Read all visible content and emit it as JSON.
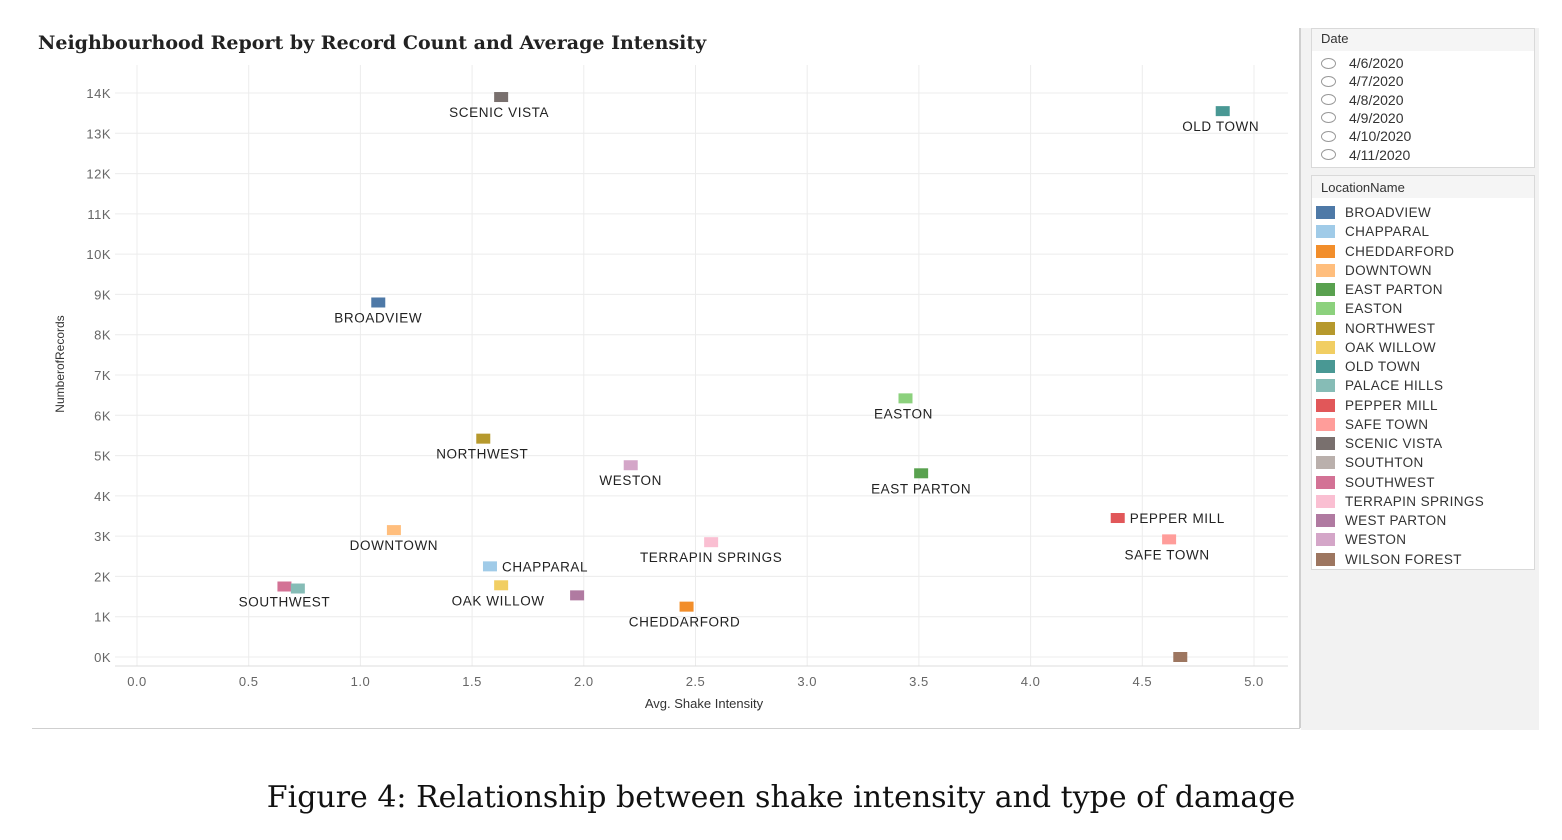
{
  "chart_data": {
    "type": "scatter",
    "title": "Neighbourhood Report by Record Count and Average Intensity",
    "xlabel": "Avg. Shake Intensity",
    "ylabel": "NumberofRecords",
    "xlim": [
      0.0,
      5.0
    ],
    "ylim": [
      0,
      14000
    ],
    "x_ticks": [
      "0.0",
      "0.5",
      "1.0",
      "1.5",
      "2.0",
      "2.5",
      "3.0",
      "3.5",
      "4.0",
      "4.5",
      "5.0"
    ],
    "y_ticks": [
      "0K",
      "1K",
      "2K",
      "3K",
      "4K",
      "5K",
      "6K",
      "7K",
      "8K",
      "9K",
      "10K",
      "11K",
      "12K",
      "13K",
      "14K"
    ],
    "grid": true,
    "legend_placement": "right",
    "points": [
      {
        "name": "SCENIC VISTA",
        "x": 1.63,
        "y": 13900,
        "color": "#79706e",
        "label": "SCENIC VISTA"
      },
      {
        "name": "OLD TOWN",
        "x": 4.86,
        "y": 13550,
        "color": "#499894",
        "label": "OLD TOWN"
      },
      {
        "name": "BROADVIEW",
        "x": 1.08,
        "y": 8800,
        "color": "#4e79a7",
        "label": "BROADVIEW"
      },
      {
        "name": "EASTON",
        "x": 3.44,
        "y": 6420,
        "color": "#8cd17d",
        "label": "EASTON"
      },
      {
        "name": "NORTHWEST",
        "x": 1.55,
        "y": 5420,
        "color": "#b6992d",
        "label": "NORTHWEST"
      },
      {
        "name": "WESTON",
        "x": 2.21,
        "y": 4760,
        "color": "#d4a6c8",
        "label": "WESTON"
      },
      {
        "name": "EAST PARTON",
        "x": 3.51,
        "y": 4560,
        "color": "#59a14f",
        "label": "EAST PARTON"
      },
      {
        "name": "PEPPER MILL",
        "x": 4.39,
        "y": 3450,
        "color": "#e15759",
        "label": "PEPPER MILL"
      },
      {
        "name": "DOWNTOWN",
        "x": 1.15,
        "y": 3150,
        "color": "#ffbe7d",
        "label": "DOWNTOWN"
      },
      {
        "name": "SAFE TOWN",
        "x": 4.62,
        "y": 2920,
        "color": "#ff9d9a",
        "label": "SAFE TOWN"
      },
      {
        "name": "TERRAPIN SPRINGS",
        "x": 2.57,
        "y": 2850,
        "color": "#fabfd2",
        "label": "TERRAPIN SPRINGS"
      },
      {
        "name": "CHAPPARAL",
        "x": 1.58,
        "y": 2250,
        "color": "#a0cbe8",
        "label": "CHAPPARAL"
      },
      {
        "name": "OAK WILLOW",
        "x": 1.63,
        "y": 1780,
        "color": "#f1ce63",
        "label": "OAK WILLOW"
      },
      {
        "name": "SOUTHWEST",
        "x": 0.66,
        "y": 1750,
        "color": "#d37295",
        "label": "SOUTHWEST"
      },
      {
        "name": "PALACE HILLS",
        "x": 0.72,
        "y": 1700,
        "color": "#86bcb6",
        "label": ""
      },
      {
        "name": "WEST PARTON",
        "x": 1.97,
        "y": 1530,
        "color": "#b07aa1",
        "label": ""
      },
      {
        "name": "CHEDDARFORD",
        "x": 2.46,
        "y": 1250,
        "color": "#f28e2b",
        "label": "CHEDDARFORD"
      },
      {
        "name": "WILSON FOREST",
        "x": 4.67,
        "y": 0,
        "color": "#9d7660",
        "label": ""
      }
    ]
  },
  "filters": {
    "date": {
      "title": "Date",
      "options": [
        "4/6/2020",
        "4/7/2020",
        "4/8/2020",
        "4/9/2020",
        "4/10/2020",
        "4/11/2020"
      ]
    }
  },
  "legend": {
    "title": "LocationName",
    "items": [
      {
        "label": "BROADVIEW",
        "color": "#4e79a7"
      },
      {
        "label": "CHAPPARAL",
        "color": "#a0cbe8"
      },
      {
        "label": "CHEDDARFORD",
        "color": "#f28e2b"
      },
      {
        "label": "DOWNTOWN",
        "color": "#ffbe7d"
      },
      {
        "label": "EAST PARTON",
        "color": "#59a14f"
      },
      {
        "label": "EASTON",
        "color": "#8cd17d"
      },
      {
        "label": "NORTHWEST",
        "color": "#b6992d"
      },
      {
        "label": "OAK WILLOW",
        "color": "#f1ce63"
      },
      {
        "label": "OLD TOWN",
        "color": "#499894"
      },
      {
        "label": "PALACE HILLS",
        "color": "#86bcb6"
      },
      {
        "label": "PEPPER MILL",
        "color": "#e15759"
      },
      {
        "label": "SAFE TOWN",
        "color": "#ff9d9a"
      },
      {
        "label": "SCENIC VISTA",
        "color": "#79706e"
      },
      {
        "label": "SOUTHTON",
        "color": "#bab0ac"
      },
      {
        "label": "SOUTHWEST",
        "color": "#d37295"
      },
      {
        "label": "TERRAPIN SPRINGS",
        "color": "#fabfd2"
      },
      {
        "label": "WEST PARTON",
        "color": "#b07aa1"
      },
      {
        "label": "WESTON",
        "color": "#d4a6c8"
      },
      {
        "label": "WILSON FOREST",
        "color": "#9d7660"
      }
    ]
  },
  "caption": "Figure 4: Relationship between shake intensity and type of damage"
}
